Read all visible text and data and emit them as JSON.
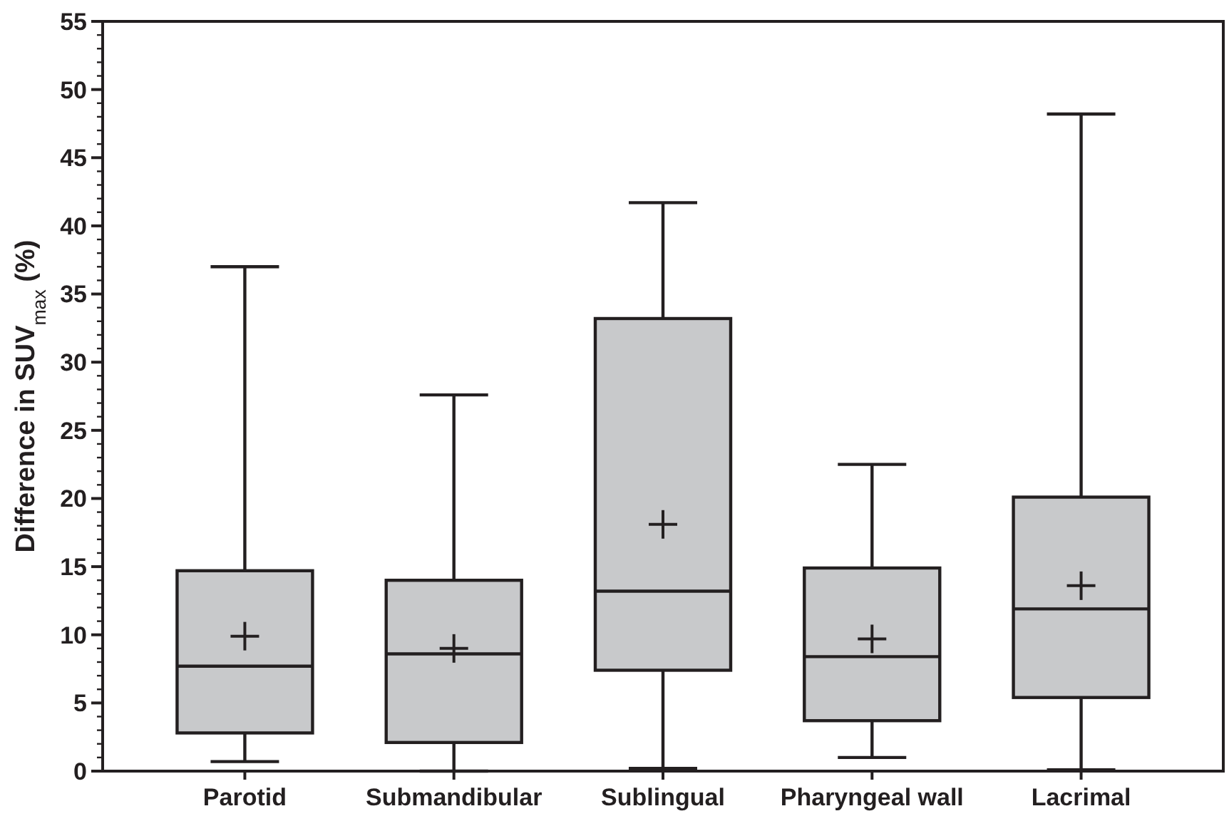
{
  "chart_data": {
    "type": "box",
    "ylabel": "Difference in SUV$_{max}$ (%)",
    "categories": [
      "Parotid",
      "Submandibular",
      "Sublingual",
      "Pharyngeal wall",
      "Lacrimal"
    ],
    "color": "#c8c9cb",
    "ylim": [
      0,
      55
    ],
    "yticks": [
      0,
      5,
      10,
      15,
      20,
      25,
      30,
      35,
      40,
      45,
      50,
      55
    ],
    "grid": false,
    "boxes": [
      {
        "low": 0.7,
        "q1": 2.8,
        "median": 7.7,
        "q3": 14.7,
        "high": 37,
        "mean": 9.9
      },
      {
        "low": 0,
        "q1": 2.1,
        "median": 8.6,
        "q3": 14.0,
        "high": 27.6,
        "mean": 9.0
      },
      {
        "low": 0.2,
        "q1": 7.4,
        "median": 13.2,
        "q3": 33.2,
        "high": 41.7,
        "mean": 18.1
      },
      {
        "low": 1.0,
        "q1": 3.7,
        "median": 8.4,
        "q3": 14.9,
        "high": 22.5,
        "mean": 9.7
      },
      {
        "low": 0.1,
        "q1": 5.4,
        "median": 11.9,
        "q3": 20.1,
        "high": 48.2,
        "mean": 13.6
      }
    ]
  }
}
